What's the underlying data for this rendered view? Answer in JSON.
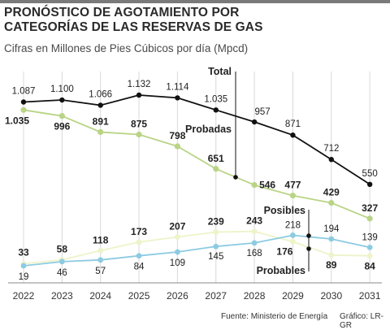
{
  "header": {
    "title_line1": "PRONÓSTICO DE AGOTAMIENTO POR",
    "title_line2": "CATEGORÍAS DE LAS RESERVAS DE GAS",
    "subtitle": "Cifras en Millones de Pies Cúbicos por día (Mpcd)"
  },
  "footer": {
    "source": "Fuente: Ministerio de Energía",
    "credit": "Gráfico: LR-GR"
  },
  "colors": {
    "total": "#111111",
    "probadas": "#b9d486",
    "posibles": "#eef3c9",
    "probables": "#8ccbe2",
    "grid": "#d8d8d8"
  },
  "chart_data": {
    "type": "line",
    "title": "PRONÓSTICO DE AGOTAMIENTO POR CATEGORÍAS DE LAS RESERVAS DE GAS",
    "subtitle": "Cifras en Millones de Pies Cúbicos por día (Mpcd)",
    "xlabel": "",
    "ylabel": "",
    "x": [
      "2022",
      "2023",
      "2024",
      "2025",
      "2026",
      "2027",
      "2028",
      "2029",
      "2030",
      "2031"
    ],
    "grid": "vertical",
    "series": [
      {
        "name": "Total",
        "values": [
          1087,
          1100,
          1066,
          1132,
          1114,
          1035,
          957,
          871,
          712,
          550
        ],
        "labels": [
          "1.087",
          "1.100",
          "1.066",
          "1.132",
          "1.114",
          "1.035",
          "957",
          "871",
          "712",
          "550"
        ]
      },
      {
        "name": "Probadas",
        "values": [
          1035,
          996,
          891,
          875,
          798,
          651,
          546,
          477,
          429,
          327
        ],
        "labels": [
          "1.035",
          "996",
          "891",
          "875",
          "798",
          "651",
          "546",
          "477",
          "429",
          "327"
        ]
      },
      {
        "name": "Posibles",
        "values": [
          33,
          58,
          118,
          173,
          207,
          239,
          243,
          176,
          89,
          84
        ],
        "labels": [
          "33",
          "58",
          "118",
          "173",
          "207",
          "239",
          "243",
          "176",
          "89",
          "84"
        ]
      },
      {
        "name": "Probables",
        "values": [
          19,
          46,
          57,
          84,
          109,
          145,
          168,
          218,
          194,
          139
        ],
        "labels": [
          "19",
          "46",
          "57",
          "84",
          "109",
          "145",
          "168",
          "218",
          "194",
          "139"
        ]
      }
    ]
  }
}
